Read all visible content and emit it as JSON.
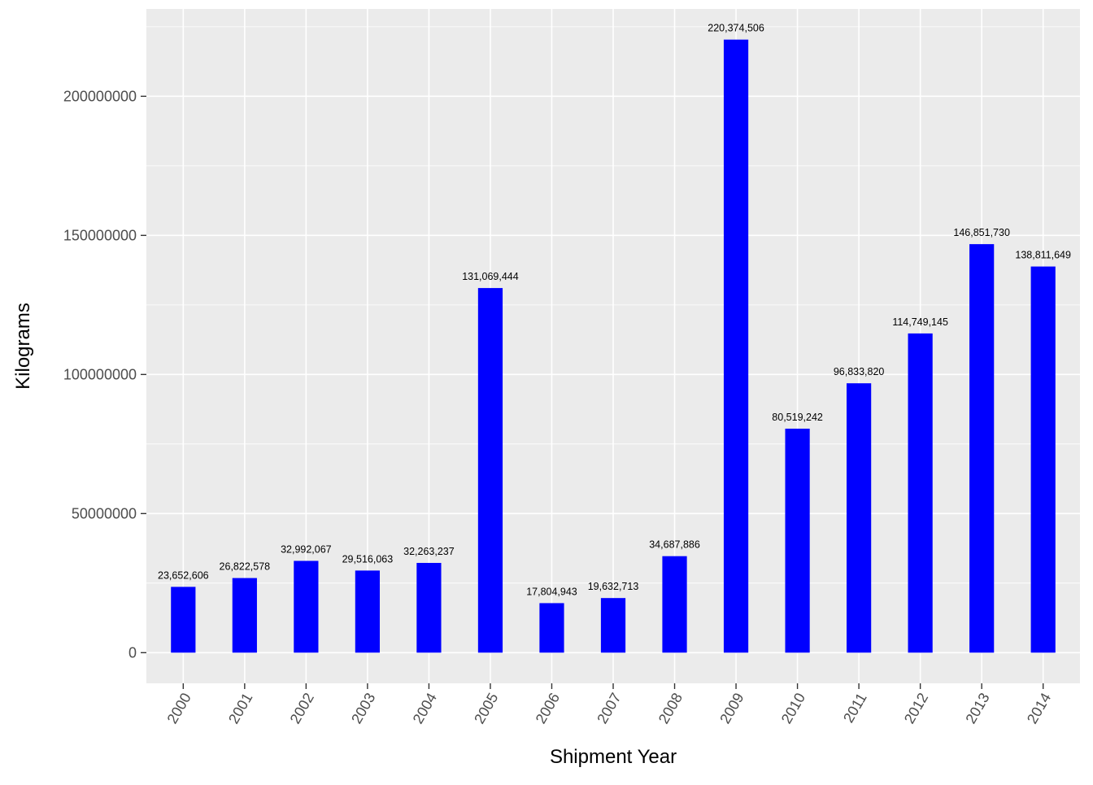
{
  "chart_data": {
    "type": "bar",
    "xlabel": "Shipment Year",
    "ylabel": "Kilograms",
    "categories": [
      "2000",
      "2001",
      "2002",
      "2003",
      "2004",
      "2005",
      "2006",
      "2007",
      "2008",
      "2009",
      "2010",
      "2011",
      "2012",
      "2013",
      "2014"
    ],
    "values": [
      23652606,
      26822578,
      32992067,
      29516063,
      32263237,
      131069444,
      17804943,
      19632713,
      34687886,
      220374506,
      80519242,
      96833820,
      114749145,
      146851730,
      138811649
    ],
    "data_labels": [
      "23,652,606",
      "26,822,578",
      "32,992,067",
      "29,516,063",
      "32,263,237",
      "131,069,444",
      "17,804,943",
      "19,632,713",
      "34,687,886",
      "220,374,506",
      "80,519,242",
      "96,833,820",
      "114,749,145",
      "146,851,730",
      "138,811,649"
    ],
    "y_ticks": [
      0,
      50000000,
      100000000,
      150000000,
      200000000
    ],
    "y_tick_labels": [
      "0",
      "50000000",
      "100000000",
      "150000000",
      "200000000"
    ],
    "ylim": [
      -11018725,
      231393231
    ],
    "x_tick_rotation_deg": -60,
    "grid": true,
    "legend": "none",
    "colors": {
      "bar": "#0000ff",
      "panel_background": "#ebebeb",
      "grid": "#ffffff",
      "tick_text": "#4d4d4d",
      "axis_title": "#000000"
    }
  }
}
